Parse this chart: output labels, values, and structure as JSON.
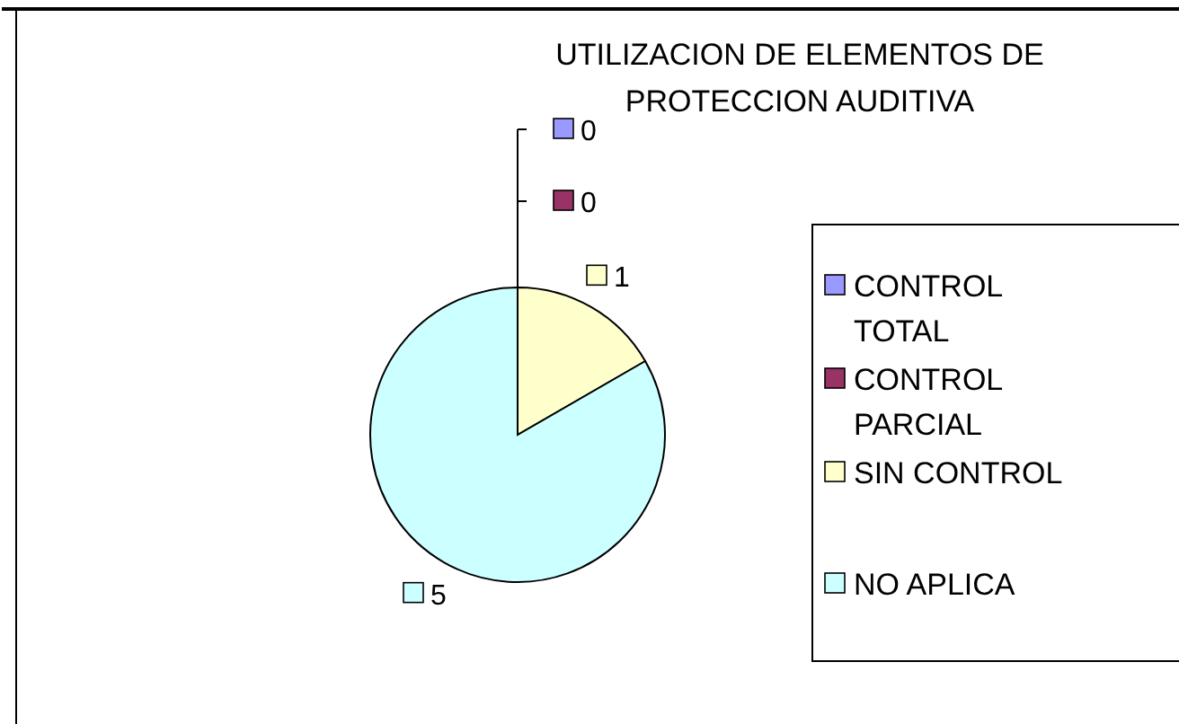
{
  "chart_data": {
    "type": "pie",
    "title": "UTILIZACION DE ELEMENTOS DE PROTECCION AUDITIVA",
    "categories": [
      "CONTROL TOTAL",
      "CONTROL PARCIAL",
      "SIN CONTROL",
      "NO APLICA"
    ],
    "values": [
      0,
      0,
      1,
      5
    ],
    "value_labels": [
      "0",
      "0",
      "1",
      "5"
    ],
    "colors": [
      "#9999ff",
      "#993366",
      "#ffffcc",
      "#ccffff"
    ],
    "legend": "right"
  }
}
